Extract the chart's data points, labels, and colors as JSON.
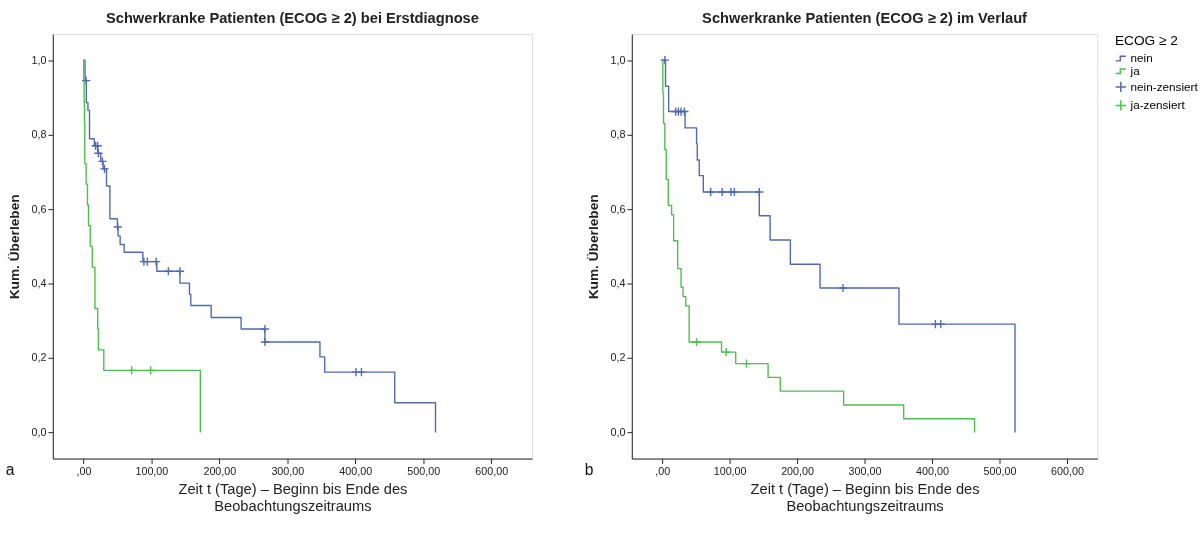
{
  "chart_data": [
    {
      "type": "step",
      "title": "Schwerkranke Patienten (ECOG ≥ 2) bei Erstdiagnose",
      "xlabel": "Zeit t (Tage) – Beginn bis Ende des Beobachtungszeitraums",
      "ylabel": "Kum. Überleben",
      "annotations": [
        "a"
      ],
      "legend": false,
      "grid": false,
      "xlim": [
        -45,
        660
      ],
      "ylim": [
        -0.07,
        1.07
      ],
      "xticks": [
        {
          "value": 0,
          "label": ",00"
        },
        {
          "value": 100,
          "label": "100,00"
        },
        {
          "value": 200,
          "label": "200,00"
        },
        {
          "value": 300,
          "label": "300,00"
        },
        {
          "value": 400,
          "label": "400,00"
        },
        {
          "value": 500,
          "label": "500,00"
        },
        {
          "value": 600,
          "label": "600,00"
        }
      ],
      "yticks": [
        {
          "value": 0,
          "label": "0,0"
        },
        {
          "value": 0.2,
          "label": "0,2"
        },
        {
          "value": 0.4,
          "label": "0,4"
        },
        {
          "value": 0.6,
          "label": "0,6"
        },
        {
          "value": 0.8,
          "label": "0,8"
        },
        {
          "value": 1.0,
          "label": "1,0"
        }
      ],
      "series": [
        {
          "color": "#5068b8",
          "x": [
            0,
            2.4,
            4.3,
            6.7,
            9,
            16,
            21,
            25.5,
            29,
            34,
            39,
            50,
            51,
            54,
            60,
            87.5,
            108,
            142,
            156,
            158,
            188,
            232,
            267,
            348,
            355,
            458,
            518
          ],
          "values": [
            1.0,
            0.945,
            0.886,
            0.865,
            0.789,
            0.77,
            0.75,
            0.728,
            0.708,
            0.662,
            0.574,
            0.552,
            0.528,
            0.505,
            0.484,
            0.459,
            0.433,
            0.401,
            0.371,
            0.341,
            0.309,
            0.278,
            0.243,
            0.203,
            0.162,
            0.08,
            0
          ]
        },
        {
          "color": "#4cc04c",
          "x": [
            0,
            0.5,
            1,
            1.5,
            2,
            4,
            6,
            7.5,
            10,
            13,
            17,
            21,
            22,
            30,
            172
          ],
          "values": [
            1.0,
            0.944,
            0.889,
            0.833,
            0.722,
            0.667,
            0.611,
            0.556,
            0.5,
            0.444,
            0.333,
            0.278,
            0.222,
            0.167,
            0
          ]
        },
        {
          "type": "scatter",
          "marker": "cross",
          "color": "#5068b8",
          "x": [
            4,
            18,
            21,
            22,
            28,
            31,
            50.5,
            89,
            94,
            107,
            125,
            142,
            267,
            267,
            401,
            409
          ],
          "values": [
            0.945,
            0.77,
            0.77,
            0.75,
            0.728,
            0.708,
            0.552,
            0.459,
            0.459,
            0.459,
            0.433,
            0.433,
            0.278,
            0.243,
            0.162,
            0.162
          ]
        },
        {
          "type": "scatter",
          "marker": "cross",
          "color": "#4cc04c",
          "x": [
            71,
            99
          ],
          "values": [
            0.167,
            0.167
          ]
        }
      ]
    },
    {
      "type": "step",
      "title": "Schwerkranke Patienten (ECOG ≥ 2) im Verlauf",
      "xlabel": "Zeit t (Tage) – Beginn bis Ende des Beobachtungszeitraums",
      "ylabel": "Kum. Überleben",
      "annotations": [
        "b"
      ],
      "legend": "right",
      "legend_title": "ECOG ≥ 2",
      "grid": false,
      "xlim": [
        -45,
        645
      ],
      "ylim": [
        -0.07,
        1.07
      ],
      "xticks": [
        {
          "value": 0,
          "label": ",00"
        },
        {
          "value": 100,
          "label": "100,00"
        },
        {
          "value": 200,
          "label": "200,00"
        },
        {
          "value": 300,
          "label": "300,00"
        },
        {
          "value": 400,
          "label": "400,00"
        },
        {
          "value": 500,
          "label": "500,00"
        },
        {
          "value": 600,
          "label": "600,00"
        }
      ],
      "yticks": [
        {
          "value": 0,
          "label": "0,0"
        },
        {
          "value": 0.2,
          "label": "0,2"
        },
        {
          "value": 0.4,
          "label": "0,4"
        },
        {
          "value": 0.6,
          "label": "0,6"
        },
        {
          "value": 0.8,
          "label": "0,8"
        },
        {
          "value": 1.0,
          "label": "1,0"
        }
      ],
      "series": [
        {
          "name": "nein",
          "color": "#5068b8",
          "x": [
            0,
            5,
            9.6,
            34,
            51,
            52,
            55,
            61,
            144,
            160,
            190,
            234,
            351,
            523
          ],
          "values": [
            1.0,
            0.93,
            0.862,
            0.818,
            0.776,
            0.732,
            0.69,
            0.646,
            0.582,
            0.517,
            0.452,
            0.388,
            0.291,
            0
          ]
        },
        {
          "name": "ja",
          "color": "#4cc04c",
          "x": [
            0,
            1,
            2,
            4,
            6,
            9,
            14,
            17,
            23,
            28,
            31,
            35,
            40,
            88,
            109,
            157,
            175,
            269,
            358,
            463
          ],
          "values": [
            1.0,
            0.91,
            0.83,
            0.76,
            0.68,
            0.61,
            0.585,
            0.515,
            0.44,
            0.39,
            0.365,
            0.34,
            0.243,
            0.216,
            0.185,
            0.148,
            0.111,
            0.074,
            0.037,
            0
          ]
        },
        {
          "type": "scatter",
          "marker": "cross",
          "name": "nein-zensiert",
          "color": "#5068b8",
          "x": [
            4,
            20,
            24,
            28,
            33,
            72,
            89,
            102,
            107,
            144,
            268,
            405,
            413
          ],
          "values": [
            1.0,
            0.862,
            0.862,
            0.862,
            0.862,
            0.646,
            0.646,
            0.646,
            0.646,
            0.646,
            0.388,
            0.291,
            0.291
          ]
        },
        {
          "type": "scatter",
          "marker": "cross",
          "name": "ja-zensiert",
          "color": "#4cc04c",
          "x": [
            51,
            95,
            125
          ],
          "values": [
            0.243,
            0.216,
            0.185
          ]
        }
      ]
    }
  ]
}
